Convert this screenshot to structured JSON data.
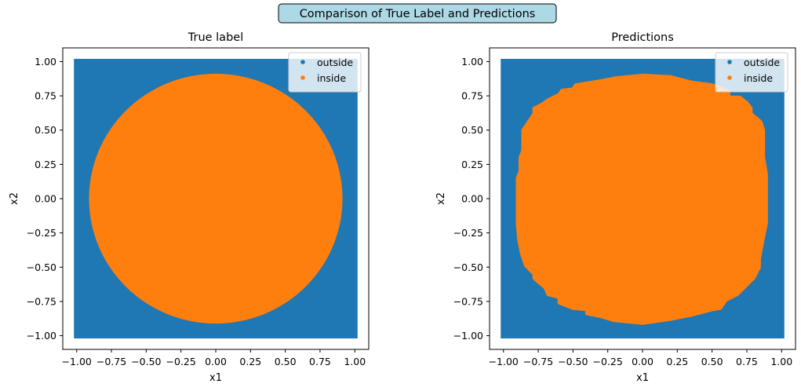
{
  "colors": {
    "outside": "#1f77b4",
    "inside": "#ff7f0e",
    "suptitle_box": "#add8e6",
    "axes": "#000000",
    "legend_box": "#ffffff"
  },
  "chart_data": {
    "suptitle": "Comparison of True Label and Predictions",
    "charts": [
      {
        "type": "scatter",
        "title": "True label",
        "xlabel": "x1",
        "ylabel": "x2",
        "xlim": [
          -1.1,
          1.1
        ],
        "ylim": [
          -1.1,
          1.1
        ],
        "xticks": [
          -1.0,
          -0.75,
          -0.5,
          -0.25,
          0.0,
          0.25,
          0.5,
          0.75,
          1.0
        ],
        "yticks": [
          -1.0,
          -0.75,
          -0.5,
          -0.25,
          0.0,
          0.25,
          0.5,
          0.75,
          1.0
        ],
        "xtick_labels": [
          "−1.00",
          "−0.75",
          "−0.50",
          "−0.25",
          "0.00",
          "0.25",
          "0.50",
          "0.75",
          "1.00"
        ],
        "ytick_labels": [
          "−1.00",
          "−0.75",
          "−0.50",
          "−0.25",
          "0.00",
          "0.25",
          "0.50",
          "0.75",
          "1.00"
        ],
        "grid": false,
        "legend_placement": "upper right",
        "series": [
          {
            "name": "outside",
            "color": "#1f77b4",
            "region": "square",
            "x_range": [
              -1.0,
              1.0
            ],
            "y_range": [
              -1.0,
              1.0
            ]
          },
          {
            "name": "inside",
            "color": "#ff7f0e",
            "region": "disk",
            "center": [
              0,
              0
            ],
            "radius": 0.9
          }
        ]
      },
      {
        "type": "scatter",
        "title": "Predictions",
        "xlabel": "x1",
        "ylabel": "x2",
        "xlim": [
          -1.1,
          1.1
        ],
        "ylim": [
          -1.1,
          1.1
        ],
        "xticks": [
          -1.0,
          -0.75,
          -0.5,
          -0.25,
          0.0,
          0.25,
          0.5,
          0.75,
          1.0
        ],
        "yticks": [
          -1.0,
          -0.75,
          -0.5,
          -0.25,
          0.0,
          0.25,
          0.5,
          0.75,
          1.0
        ],
        "xtick_labels": [
          "−1.00",
          "−0.75",
          "−0.50",
          "−0.25",
          "0.00",
          "0.25",
          "0.50",
          "0.75",
          "1.00"
        ],
        "ytick_labels": [
          "−1.00",
          "−0.75",
          "−0.50",
          "−0.25",
          "0.00",
          "0.25",
          "0.50",
          "0.75",
          "1.00"
        ],
        "grid": false,
        "legend_placement": "upper right",
        "series": [
          {
            "name": "outside",
            "color": "#1f77b4",
            "region": "square",
            "x_range": [
              -1.0,
              1.0
            ],
            "y_range": [
              -1.0,
              1.0
            ]
          },
          {
            "name": "inside",
            "color": "#ff7f0e",
            "region": "polygon",
            "boundary": [
              [
                0.0,
                0.9
              ],
              [
                0.2,
                0.89
              ],
              [
                0.35,
                0.85
              ],
              [
                0.5,
                0.83
              ],
              [
                0.58,
                0.8
              ],
              [
                0.62,
                0.78
              ],
              [
                0.62,
                0.74
              ],
              [
                0.7,
                0.74
              ],
              [
                0.75,
                0.7
              ],
              [
                0.78,
                0.66
              ],
              [
                0.78,
                0.62
              ],
              [
                0.83,
                0.58
              ],
              [
                0.85,
                0.56
              ],
              [
                0.87,
                0.5
              ],
              [
                0.87,
                0.3
              ],
              [
                0.89,
                0.18
              ],
              [
                0.89,
                -0.18
              ],
              [
                0.87,
                -0.28
              ],
              [
                0.84,
                -0.44
              ],
              [
                0.84,
                -0.5
              ],
              [
                0.8,
                -0.58
              ],
              [
                0.74,
                -0.64
              ],
              [
                0.68,
                -0.7
              ],
              [
                0.6,
                -0.74
              ],
              [
                0.56,
                -0.8
              ],
              [
                0.5,
                -0.81
              ],
              [
                0.35,
                -0.85
              ],
              [
                0.2,
                -0.88
              ],
              [
                0.0,
                -0.91
              ],
              [
                -0.2,
                -0.89
              ],
              [
                -0.3,
                -0.86
              ],
              [
                -0.4,
                -0.84
              ],
              [
                -0.4,
                -0.81
              ],
              [
                -0.5,
                -0.8
              ],
              [
                -0.6,
                -0.76
              ],
              [
                -0.6,
                -0.72
              ],
              [
                -0.68,
                -0.7
              ],
              [
                -0.7,
                -0.65
              ],
              [
                -0.76,
                -0.6
              ],
              [
                -0.78,
                -0.58
              ],
              [
                -0.78,
                -0.55
              ],
              [
                -0.84,
                -0.49
              ],
              [
                -0.87,
                -0.4
              ],
              [
                -0.89,
                -0.3
              ],
              [
                -0.9,
                -0.18
              ],
              [
                -0.9,
                0.15
              ],
              [
                -0.88,
                0.2
              ],
              [
                -0.88,
                0.3
              ],
              [
                -0.86,
                0.35
              ],
              [
                -0.86,
                0.5
              ],
              [
                -0.82,
                0.56
              ],
              [
                -0.78,
                0.62
              ],
              [
                -0.78,
                0.66
              ],
              [
                -0.72,
                0.69
              ],
              [
                -0.68,
                0.72
              ],
              [
                -0.6,
                0.76
              ],
              [
                -0.58,
                0.79
              ],
              [
                -0.5,
                0.8
              ],
              [
                -0.48,
                0.83
              ],
              [
                -0.3,
                0.86
              ],
              [
                -0.2,
                0.88
              ]
            ]
          }
        ]
      }
    ]
  }
}
